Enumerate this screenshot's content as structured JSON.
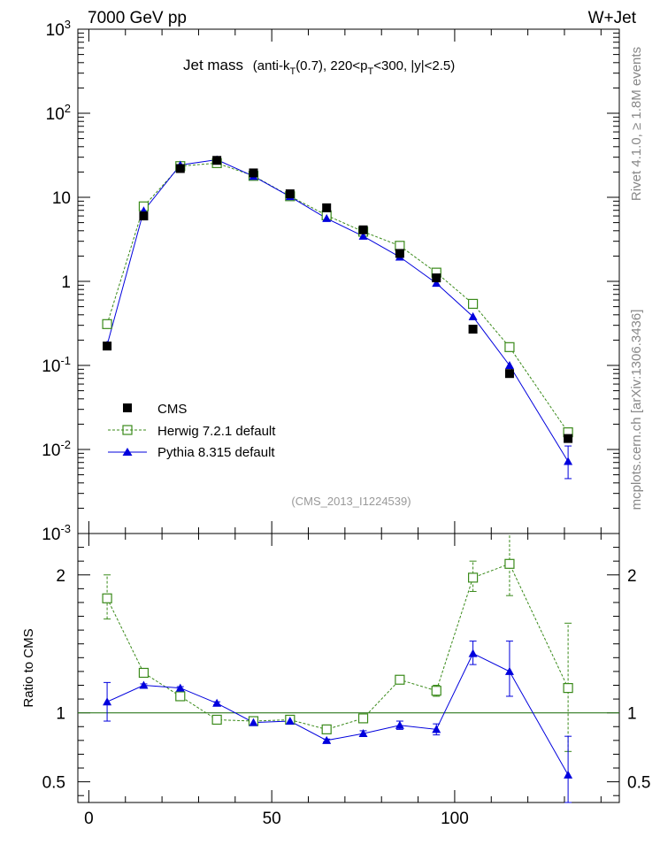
{
  "header": {
    "left": "7000 GeV pp",
    "right": "W+Jet"
  },
  "title": {
    "main": "Jet mass",
    "sub": "(anti-k",
    "sub_T": "T",
    "sub2": "(0.7), 220<p",
    "sub_T2": "T",
    "sub3": "<300, |y|<2.5)"
  },
  "side_labels": {
    "rivet": "Rivet 4.1.0, ≥ 1.8M events",
    "mcplots": "mcplots.cern.ch [arXiv:1306.3436]"
  },
  "analysis_id": "(CMS_2013_I1224539)",
  "legend": {
    "cms": "CMS",
    "herwig": "Herwig 7.2.1 default",
    "pythia": "Pythia 8.315 default"
  },
  "colors": {
    "cms": "#000000",
    "herwig": "#3a8a1a",
    "pythia": "#0000dd",
    "refline": "#2f7a1f"
  },
  "chart_data": [
    {
      "type": "scatter",
      "name": "main",
      "yscale": "log",
      "xlim": [
        -3,
        145
      ],
      "ylim": [
        0.001,
        1000
      ],
      "y_tick_labels": [
        "10^-3",
        "10^-2",
        "10^-1",
        "1",
        "10",
        "10^2",
        "10^3"
      ],
      "x": [
        5,
        15,
        25,
        35,
        45,
        55,
        65,
        75,
        85,
        95,
        105,
        115,
        131
      ],
      "series": [
        {
          "name": "CMS",
          "values": [
            0.17,
            6.0,
            22.0,
            27.5,
            19.5,
            11.0,
            7.5,
            4.1,
            2.15,
            1.1,
            0.27,
            0.08,
            0.0135
          ]
        },
        {
          "name": "Herwig 7.2.1 default",
          "values": [
            0.31,
            7.8,
            23.5,
            25.5,
            18.0,
            10.3,
            6.1,
            3.9,
            2.65,
            1.27,
            0.54,
            0.165,
            0.016
          ]
        },
        {
          "name": "Pythia 8.315 default",
          "values": [
            0.175,
            6.9,
            24.2,
            28.0,
            17.8,
            10.2,
            5.6,
            3.45,
            1.95,
            0.95,
            0.38,
            0.1,
            0.0072
          ]
        }
      ],
      "errors": {
        "Pythia 8.315 default": [
          [
            12,
            0.0045,
            0.011
          ]
        ]
      }
    },
    {
      "type": "scatter",
      "name": "ratio",
      "ylabel": "Ratio to CMS",
      "xlabel": "",
      "xlim": [
        -3,
        145
      ],
      "ylim": [
        0.35,
        2.3
      ],
      "y_ticks": [
        0.5,
        1,
        2
      ],
      "y_tick_labels": [
        "0.5",
        "1",
        "2"
      ],
      "x_ticks": [
        0,
        50,
        100
      ],
      "x_tick_labels": [
        "0",
        "50",
        "100"
      ],
      "x": [
        5,
        15,
        25,
        35,
        45,
        55,
        65,
        75,
        85,
        95,
        105,
        115,
        131
      ],
      "series": [
        {
          "name": "Herwig 7.2.1 default",
          "values": [
            1.83,
            1.29,
            1.12,
            0.95,
            0.94,
            0.95,
            0.88,
            0.96,
            1.24,
            1.16,
            1.98,
            2.08,
            1.18
          ]
        },
        {
          "name": "Pythia 8.315 default",
          "values": [
            1.08,
            1.2,
            1.18,
            1.07,
            0.93,
            0.94,
            0.8,
            0.85,
            0.91,
            0.88,
            1.43,
            1.3,
            0.55
          ]
        }
      ],
      "error_bars": {
        "Herwig 7.2.1 default": [
          [
            1.68,
            2.0
          ],
          [
            1.27,
            1.31
          ],
          [
            1.1,
            1.14
          ],
          [
            0.94,
            0.96
          ],
          [
            0.93,
            0.95
          ],
          [
            0.94,
            0.96
          ],
          [
            0.86,
            0.9
          ],
          [
            0.95,
            0.97
          ],
          [
            1.21,
            1.27
          ],
          [
            1.12,
            1.2
          ],
          [
            1.88,
            2.1
          ],
          [
            1.85,
            2.35
          ],
          [
            0.72,
            1.65
          ]
        ],
        "Pythia 8.315 default": [
          [
            0.94,
            1.22
          ],
          [
            1.19,
            1.21
          ],
          [
            1.17,
            1.19
          ],
          [
            1.06,
            1.08
          ],
          [
            0.92,
            0.94
          ],
          [
            0.93,
            0.95
          ],
          [
            0.79,
            0.81
          ],
          [
            0.83,
            0.87
          ],
          [
            0.88,
            0.94
          ],
          [
            0.84,
            0.92
          ],
          [
            1.35,
            1.52
          ],
          [
            1.12,
            1.52
          ],
          [
            0.35,
            0.83
          ]
        ]
      },
      "reference_line": 1
    }
  ]
}
